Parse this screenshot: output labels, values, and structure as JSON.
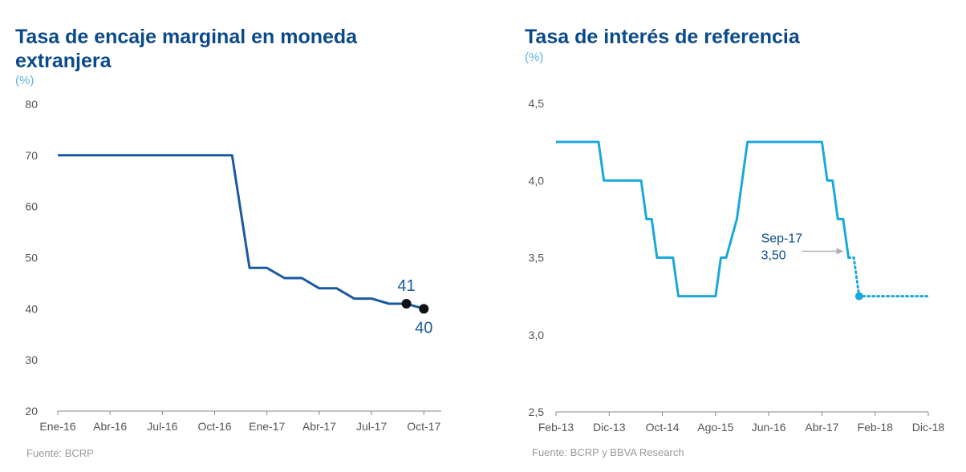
{
  "colors": {
    "title": "#0a4a8c",
    "unit": "#5bb4e0",
    "axis_text": "#555555",
    "axis_line": "#888888",
    "source": "#9a9a9a",
    "series_left": "#1a5aa0",
    "series_right": "#1aa8dc",
    "marker_left": "#111111",
    "annotation_arrow": "#b0b0b0"
  },
  "left": {
    "title_line1": "Tasa de encaje marginal en moneda",
    "title_line2": "extranjera",
    "unit": "(%)",
    "source": "Fuente: BCRP"
  },
  "right": {
    "title": "Tasa de interés de referencia",
    "unit": "(%)",
    "source": "Fuente: BCRP y BBVA  Research"
  },
  "chart_data": [
    {
      "type": "line",
      "title": "Tasa de encaje marginal en moneda extranjera",
      "ylabel": "(%)",
      "ylim": [
        20,
        80
      ],
      "yticks": [
        "20",
        "30",
        "40",
        "50",
        "60",
        "70",
        "80"
      ],
      "xticks": [
        "Ene-16",
        "Abr-16",
        "Jul-16",
        "Oct-16",
        "Ene-17",
        "Abr-17",
        "Jul-17",
        "Oct-17"
      ],
      "x_range": [
        "Ene-16",
        "Nov-17"
      ],
      "series": [
        {
          "x": [
            "Ene-16",
            "Nov-16",
            "Dic-16",
            "Ene-17",
            "Feb-17",
            "Mar-17",
            "Abr-17",
            "May-17",
            "Jun-17",
            "Jul-17",
            "Ago-17",
            "Sep-17",
            "Oct-17"
          ],
          "values": [
            70,
            70,
            48,
            48,
            46,
            46,
            44,
            44,
            42,
            42,
            41,
            41,
            40
          ]
        }
      ],
      "markers": [
        {
          "x": "Sep-17",
          "value": 41,
          "label": "41"
        },
        {
          "x": "Oct-17",
          "value": 40,
          "label": "40"
        }
      ],
      "grid": false,
      "legend": "none"
    },
    {
      "type": "line",
      "title": "Tasa de interés de referencia",
      "ylabel": "(%)",
      "ylim": [
        2.5,
        4.5
      ],
      "yticks": [
        "2,5",
        "3,0",
        "3,5",
        "4,0",
        "4,5"
      ],
      "xticks": [
        "Feb-13",
        "Dic-13",
        "Oct-14",
        "Ago-15",
        "Jun-16",
        "Abr-17",
        "Feb-18",
        "Dic-18"
      ],
      "x_range": [
        "Feb-13",
        "Dic-18"
      ],
      "series": [
        {
          "style": "solid",
          "x": [
            "Feb-13",
            "Oct-13",
            "Nov-13",
            "Jun-14",
            "Jul-14",
            "Ago-14",
            "Sep-14",
            "Dic-14",
            "Ene-15",
            "Ago-15",
            "Sep-15",
            "Oct-15",
            "Dic-15",
            "Ene-16",
            "Feb-16",
            "Abr-17",
            "May-17",
            "Jun-17",
            "Jul-17",
            "Ago-17",
            "Sep-17"
          ],
          "values": [
            4.25,
            4.25,
            4.0,
            4.0,
            3.75,
            3.75,
            3.5,
            3.5,
            3.25,
            3.25,
            3.5,
            3.5,
            3.75,
            4.0,
            4.25,
            4.25,
            4.0,
            4.0,
            3.75,
            3.75,
            3.5
          ]
        },
        {
          "style": "dotted",
          "x": [
            "Sep-17",
            "Oct-17",
            "Nov-17",
            "Dic-18"
          ],
          "values": [
            3.5,
            3.5,
            3.25,
            3.25
          ]
        }
      ],
      "markers": [
        {
          "x": "Nov-17",
          "value": 3.25
        }
      ],
      "annotation": {
        "line1": "Sep-17",
        "line2": "3,50",
        "x": "Sep-17",
        "value": 3.5
      },
      "grid": false,
      "legend": "none"
    }
  ]
}
